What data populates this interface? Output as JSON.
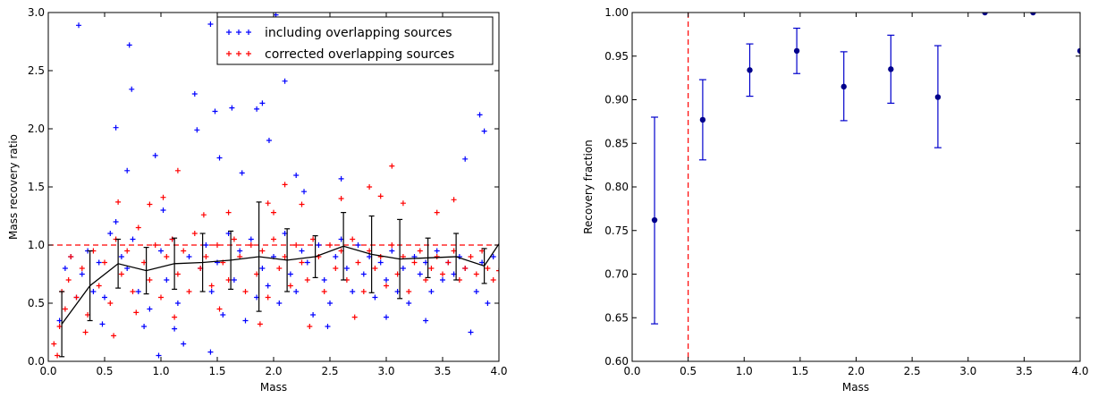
{
  "chart_data": [
    {
      "type": "scatter",
      "xlabel": "Mass",
      "ylabel": "Mass recovery ratio",
      "xlim": [
        0.0,
        4.0
      ],
      "ylim": [
        0.0,
        3.0
      ],
      "xticks": [
        "0.0",
        "0.5",
        "1.0",
        "1.5",
        "2.0",
        "2.5",
        "3.0",
        "3.5",
        "4.0"
      ],
      "yticks": [
        "0.0",
        "0.5",
        "1.0",
        "1.5",
        "2.0",
        "2.5",
        "3.0"
      ],
      "legend_position": "top-right",
      "reference_line": {
        "y": 1.0,
        "style": "dashed",
        "color": "#ff0000"
      },
      "series": [
        {
          "name": "including overlapping sources",
          "color": "#0000ff",
          "marker": "+",
          "points": [
            [
              0.27,
              2.89
            ],
            [
              0.6,
              2.01
            ],
            [
              0.7,
              1.64
            ],
            [
              0.72,
              2.72
            ],
            [
              0.74,
              2.34
            ],
            [
              0.95,
              1.77
            ],
            [
              1.3,
              2.3
            ],
            [
              1.32,
              1.99
            ],
            [
              1.44,
              2.9
            ],
            [
              1.48,
              2.15
            ],
            [
              1.63,
              2.18
            ],
            [
              1.72,
              1.62
            ],
            [
              1.85,
              2.17
            ],
            [
              1.9,
              2.22
            ],
            [
              2.02,
              2.98
            ],
            [
              2.1,
              2.41
            ],
            [
              2.2,
              1.6
            ],
            [
              2.6,
              1.57
            ],
            [
              2.27,
              1.46
            ],
            [
              1.96,
              1.9
            ],
            [
              1.52,
              1.75
            ],
            [
              3.83,
              2.12
            ],
            [
              3.87,
              1.98
            ],
            [
              3.7,
              1.74
            ],
            [
              3.75,
              0.25
            ],
            [
              1.44,
              0.08
            ],
            [
              0.98,
              0.05
            ],
            [
              0.5,
              0.55
            ],
            [
              0.55,
              1.1
            ],
            [
              0.6,
              1.2
            ],
            [
              0.65,
              0.9
            ],
            [
              0.7,
              0.8
            ],
            [
              0.75,
              1.05
            ],
            [
              0.8,
              0.6
            ],
            [
              0.85,
              0.3
            ],
            [
              0.9,
              0.45
            ],
            [
              1.0,
              0.95
            ],
            [
              1.05,
              0.7
            ],
            [
              1.1,
              1.05
            ],
            [
              1.15,
              0.5
            ],
            [
              1.2,
              0.15
            ],
            [
              1.25,
              0.9
            ],
            [
              1.35,
              0.8
            ],
            [
              1.4,
              1.0
            ],
            [
              1.45,
              0.6
            ],
            [
              1.5,
              0.85
            ],
            [
              1.55,
              0.4
            ],
            [
              1.6,
              1.1
            ],
            [
              1.65,
              0.7
            ],
            [
              1.7,
              0.95
            ],
            [
              1.75,
              0.35
            ],
            [
              1.8,
              1.05
            ],
            [
              1.85,
              0.55
            ],
            [
              1.9,
              0.8
            ],
            [
              1.95,
              0.65
            ],
            [
              2.0,
              0.9
            ],
            [
              2.05,
              0.5
            ],
            [
              2.1,
              1.1
            ],
            [
              2.15,
              0.75
            ],
            [
              2.2,
              0.6
            ],
            [
              2.25,
              0.95
            ],
            [
              2.3,
              0.85
            ],
            [
              2.35,
              0.4
            ],
            [
              2.4,
              1.0
            ],
            [
              2.45,
              0.7
            ],
            [
              2.5,
              0.5
            ],
            [
              2.55,
              0.9
            ],
            [
              2.6,
              1.05
            ],
            [
              2.65,
              0.8
            ],
            [
              2.7,
              0.6
            ],
            [
              2.75,
              1.0
            ],
            [
              2.8,
              0.75
            ],
            [
              2.85,
              0.9
            ],
            [
              2.9,
              0.55
            ],
            [
              2.95,
              0.85
            ],
            [
              3.0,
              0.7
            ],
            [
              3.05,
              0.95
            ],
            [
              3.1,
              0.6
            ],
            [
              3.15,
              0.8
            ],
            [
              3.2,
              0.5
            ],
            [
              3.25,
              0.9
            ],
            [
              3.3,
              0.75
            ],
            [
              3.35,
              0.85
            ],
            [
              3.4,
              0.6
            ],
            [
              3.45,
              0.95
            ],
            [
              3.5,
              0.7
            ],
            [
              3.55,
              0.85
            ],
            [
              3.6,
              0.75
            ],
            [
              3.65,
              0.9
            ],
            [
              3.7,
              0.8
            ],
            [
              3.8,
              0.6
            ],
            [
              3.85,
              0.85
            ],
            [
              3.9,
              0.5
            ],
            [
              3.95,
              0.9
            ],
            [
              0.3,
              0.75
            ],
            [
              0.35,
              0.95
            ],
            [
              0.4,
              0.6
            ],
            [
              0.45,
              0.85
            ],
            [
              0.2,
              0.9
            ],
            [
              0.25,
              0.55
            ],
            [
              0.15,
              0.8
            ],
            [
              0.1,
              0.35
            ],
            [
              1.12,
              0.28
            ],
            [
              1.02,
              1.3
            ],
            [
              0.48,
              0.32
            ],
            [
              2.48,
              0.3
            ],
            [
              3.0,
              0.38
            ],
            [
              3.35,
              0.35
            ]
          ]
        },
        {
          "name": "corrected overlapping sources",
          "color": "#ff0000",
          "marker": "+",
          "points": [
            [
              0.05,
              0.15
            ],
            [
              0.08,
              0.05
            ],
            [
              0.1,
              0.3
            ],
            [
              0.12,
              0.6
            ],
            [
              0.15,
              0.45
            ],
            [
              0.18,
              0.7
            ],
            [
              0.2,
              0.9
            ],
            [
              0.25,
              0.55
            ],
            [
              0.3,
              0.8
            ],
            [
              0.35,
              0.4
            ],
            [
              0.4,
              0.95
            ],
            [
              0.45,
              0.65
            ],
            [
              0.5,
              0.85
            ],
            [
              0.55,
              0.5
            ],
            [
              0.6,
              1.05
            ],
            [
              0.65,
              0.75
            ],
            [
              0.7,
              0.95
            ],
            [
              0.75,
              0.6
            ],
            [
              0.8,
              1.15
            ],
            [
              0.85,
              0.85
            ],
            [
              0.9,
              0.7
            ],
            [
              0.95,
              1.0
            ],
            [
              1.0,
              0.55
            ],
            [
              1.05,
              0.9
            ],
            [
              1.1,
              1.05
            ],
            [
              1.15,
              0.75
            ],
            [
              1.2,
              0.95
            ],
            [
              1.25,
              0.6
            ],
            [
              1.3,
              1.1
            ],
            [
              1.35,
              0.8
            ],
            [
              1.4,
              0.9
            ],
            [
              1.45,
              0.65
            ],
            [
              1.5,
              1.0
            ],
            [
              1.55,
              0.85
            ],
            [
              1.6,
              0.7
            ],
            [
              1.65,
              1.05
            ],
            [
              1.7,
              0.9
            ],
            [
              1.75,
              0.6
            ],
            [
              1.8,
              1.0
            ],
            [
              1.85,
              0.75
            ],
            [
              1.9,
              0.95
            ],
            [
              1.95,
              0.55
            ],
            [
              2.0,
              1.05
            ],
            [
              2.05,
              0.8
            ],
            [
              2.1,
              0.9
            ],
            [
              2.15,
              0.65
            ],
            [
              2.2,
              1.0
            ],
            [
              2.25,
              0.85
            ],
            [
              2.3,
              0.7
            ],
            [
              2.35,
              1.05
            ],
            [
              2.4,
              0.9
            ],
            [
              2.45,
              0.6
            ],
            [
              2.5,
              1.0
            ],
            [
              2.55,
              0.8
            ],
            [
              2.6,
              0.95
            ],
            [
              2.65,
              0.7
            ],
            [
              2.7,
              1.05
            ],
            [
              2.75,
              0.85
            ],
            [
              2.8,
              0.6
            ],
            [
              2.85,
              0.95
            ],
            [
              2.9,
              0.8
            ],
            [
              2.95,
              0.9
            ],
            [
              3.0,
              0.65
            ],
            [
              3.05,
              1.0
            ],
            [
              3.1,
              0.75
            ],
            [
              3.15,
              0.9
            ],
            [
              3.2,
              0.6
            ],
            [
              3.25,
              0.85
            ],
            [
              3.3,
              0.95
            ],
            [
              3.35,
              0.7
            ],
            [
              3.4,
              0.8
            ],
            [
              3.45,
              0.9
            ],
            [
              3.5,
              0.75
            ],
            [
              3.55,
              0.85
            ],
            [
              3.6,
              0.95
            ],
            [
              3.65,
              0.7
            ],
            [
              3.7,
              0.8
            ],
            [
              3.75,
              0.9
            ],
            [
              3.8,
              0.75
            ],
            [
              3.85,
              0.95
            ],
            [
              3.9,
              0.8
            ],
            [
              3.95,
              0.7
            ],
            [
              4.0,
              0.78
            ],
            [
              0.62,
              1.37
            ],
            [
              0.9,
              1.35
            ],
            [
              1.15,
              1.64
            ],
            [
              1.38,
              1.26
            ],
            [
              1.6,
              1.28
            ],
            [
              1.95,
              1.36
            ],
            [
              2.1,
              1.52
            ],
            [
              2.25,
              1.35
            ],
            [
              2.6,
              1.4
            ],
            [
              2.85,
              1.5
            ],
            [
              2.95,
              1.42
            ],
            [
              3.05,
              1.68
            ],
            [
              3.15,
              1.36
            ],
            [
              3.45,
              1.28
            ],
            [
              3.6,
              1.39
            ],
            [
              2.0,
              1.28
            ],
            [
              1.02,
              1.41
            ],
            [
              0.58,
              0.22
            ],
            [
              0.33,
              0.25
            ],
            [
              1.12,
              0.38
            ],
            [
              1.88,
              0.32
            ],
            [
              2.32,
              0.3
            ],
            [
              2.72,
              0.38
            ],
            [
              0.78,
              0.42
            ],
            [
              1.52,
              0.45
            ]
          ]
        },
        {
          "name": "",
          "type": "line",
          "color": "#000000",
          "points": [
            [
              0.12,
              0.32
            ],
            [
              0.37,
              0.65
            ],
            [
              0.62,
              0.84
            ],
            [
              0.87,
              0.78
            ],
            [
              1.12,
              0.84
            ],
            [
              1.37,
              0.85
            ],
            [
              1.62,
              0.87
            ],
            [
              1.87,
              0.9
            ],
            [
              2.12,
              0.87
            ],
            [
              2.37,
              0.9
            ],
            [
              2.62,
              0.99
            ],
            [
              2.87,
              0.92
            ],
            [
              3.12,
              0.88
            ],
            [
              3.37,
              0.89
            ],
            [
              3.62,
              0.9
            ],
            [
              3.87,
              0.82
            ],
            [
              4.0,
              1.01
            ]
          ],
          "errors": [
            0.28,
            0.3,
            0.21,
            0.2,
            0.22,
            0.25,
            0.25,
            0.47,
            0.27,
            0.18,
            0.29,
            0.33,
            0.34,
            0.17,
            0.2,
            0.15
          ]
        }
      ]
    },
    {
      "type": "scatter",
      "xlabel": "Mass",
      "ylabel": "Recovery fraction",
      "xlim": [
        0.0,
        4.0
      ],
      "ylim": [
        0.6,
        1.0
      ],
      "xticks": [
        "0.0",
        "0.5",
        "1.0",
        "1.5",
        "2.0",
        "2.5",
        "3.0",
        "3.5",
        "4.0"
      ],
      "yticks": [
        "0.60",
        "0.65",
        "0.70",
        "0.75",
        "0.80",
        "0.85",
        "0.90",
        "0.95",
        "1.00"
      ],
      "reference_line": {
        "x": 0.5,
        "style": "dashed",
        "color": "#ff0000"
      },
      "series": [
        {
          "name": "",
          "color": "#00008b",
          "marker": "o",
          "x": [
            0.2,
            0.63,
            1.05,
            1.47,
            1.89,
            2.31,
            2.73,
            3.15,
            3.58,
            4.0
          ],
          "y": [
            0.762,
            0.877,
            0.934,
            0.956,
            0.915,
            0.935,
            0.903,
            1.0,
            1.0,
            0.956
          ],
          "yerr_low": [
            0.643,
            0.831,
            0.904,
            0.93,
            0.876,
            0.896,
            0.845,
            null,
            null,
            null
          ],
          "yerr_high": [
            0.88,
            0.923,
            0.964,
            0.982,
            0.955,
            0.974,
            0.962,
            null,
            null,
            null
          ]
        }
      ]
    }
  ]
}
